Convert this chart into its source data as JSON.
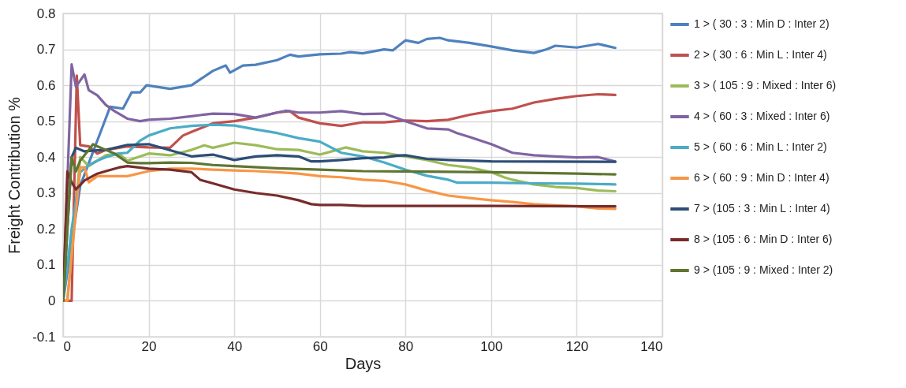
{
  "chart_data": {
    "type": "line",
    "xlabel": "Days",
    "ylabel": "Freight Contribution %",
    "xlim": [
      0,
      140
    ],
    "xticks": [
      0,
      20,
      40,
      60,
      80,
      100,
      120,
      140
    ],
    "ylim": [
      -0.1,
      0.8
    ],
    "yticks": [
      -0.1,
      0,
      0.1,
      0.2,
      0.3,
      0.4,
      0.5,
      0.6,
      0.7,
      0.8
    ],
    "grid": true,
    "legend": "right",
    "marker": "none",
    "line_style": "solid",
    "series": [
      {
        "name": "1 > ( 30 : 3 : Min D : Inter 2)",
        "color": "#4f81bd",
        "x": [
          0,
          4,
          9.4,
          11,
          14,
          16,
          18,
          19.5,
          25,
          30,
          35,
          38,
          39,
          42,
          45,
          50,
          53,
          55,
          60,
          65,
          67,
          70,
          75,
          77,
          80,
          83,
          85,
          88,
          90,
          95,
          100,
          105,
          110,
          113,
          115,
          120,
          125,
          129
        ],
        "values": [
          0,
          0.32,
          0.49,
          0.54,
          0.535,
          0.58,
          0.58,
          0.6,
          0.59,
          0.6,
          0.64,
          0.655,
          0.635,
          0.655,
          0.657,
          0.67,
          0.685,
          0.68,
          0.686,
          0.688,
          0.692,
          0.689,
          0.7,
          0.697,
          0.725,
          0.718,
          0.729,
          0.732,
          0.725,
          0.718,
          0.708,
          0.697,
          0.69,
          0.7,
          0.71,
          0.705,
          0.715,
          0.704
        ]
      },
      {
        "name": "2 > ( 30 : 6 : Min L : Inter 4)",
        "color": "#c0504d",
        "x": [
          0,
          2,
          3.2,
          4,
          6,
          8,
          10,
          15,
          20,
          25,
          28,
          30,
          35,
          40,
          45,
          50,
          53,
          55,
          60,
          65,
          70,
          75,
          80,
          85,
          90,
          95,
          100,
          105,
          110,
          115,
          120,
          125,
          129
        ],
        "values": [
          0,
          0,
          0.627,
          0.433,
          0.43,
          0.41,
          0.42,
          0.43,
          0.427,
          0.426,
          0.46,
          0.47,
          0.494,
          0.5,
          0.51,
          0.524,
          0.528,
          0.51,
          0.494,
          0.487,
          0.497,
          0.497,
          0.502,
          0.5,
          0.504,
          0.518,
          0.528,
          0.535,
          0.552,
          0.562,
          0.57,
          0.575,
          0.573
        ]
      },
      {
        "name": "3 > ( 105 : 9 : Mixed : Inter 6)",
        "color": "#9bbb59",
        "x": [
          0,
          1,
          4,
          6,
          10,
          13,
          15,
          20,
          25,
          30,
          33,
          35,
          40,
          45,
          50,
          55,
          60,
          64,
          66,
          70,
          75,
          80,
          85,
          90,
          95,
          100,
          103,
          105,
          110,
          115,
          120,
          125,
          129
        ],
        "values": [
          0,
          0,
          0.4,
          0.375,
          0.405,
          0.41,
          0.39,
          0.41,
          0.405,
          0.42,
          0.433,
          0.426,
          0.44,
          0.433,
          0.422,
          0.42,
          0.407,
          0.42,
          0.427,
          0.416,
          0.412,
          0.402,
          0.392,
          0.378,
          0.371,
          0.358,
          0.344,
          0.337,
          0.324,
          0.317,
          0.314,
          0.307,
          0.305
        ]
      },
      {
        "name": "4 > ( 60 : 3 : Mixed : Inter 6)",
        "color": "#8064a2",
        "x": [
          0,
          2,
          3,
          5,
          6,
          8,
          10,
          12,
          15,
          18,
          20,
          25,
          30,
          35,
          40,
          45,
          50,
          52,
          55,
          60,
          65,
          70,
          75,
          80,
          85,
          90,
          92,
          95,
          100,
          105,
          110,
          115,
          120,
          125,
          129
        ],
        "values": [
          0,
          0.658,
          0.596,
          0.63,
          0.586,
          0.572,
          0.545,
          0.528,
          0.507,
          0.5,
          0.504,
          0.507,
          0.514,
          0.521,
          0.52,
          0.51,
          0.524,
          0.529,
          0.524,
          0.524,
          0.528,
          0.52,
          0.521,
          0.5,
          0.48,
          0.477,
          0.467,
          0.456,
          0.436,
          0.412,
          0.405,
          0.402,
          0.399,
          0.4,
          0.388
        ]
      },
      {
        "name": "5 > ( 60 : 6 : Min L : Inter 2)",
        "color": "#4bacc6",
        "x": [
          0,
          2,
          4,
          6,
          8,
          10,
          13,
          15,
          18,
          20,
          25,
          30,
          35,
          40,
          45,
          50,
          55,
          60,
          65,
          70,
          75,
          80,
          85,
          90,
          92,
          100,
          110,
          120,
          125,
          129
        ],
        "values": [
          0,
          0.2,
          0.358,
          0.378,
          0.39,
          0.4,
          0.41,
          0.412,
          0.446,
          0.46,
          0.48,
          0.487,
          0.49,
          0.488,
          0.477,
          0.467,
          0.453,
          0.443,
          0.412,
          0.402,
          0.385,
          0.365,
          0.348,
          0.337,
          0.329,
          0.329,
          0.327,
          0.326,
          0.325,
          0.324
        ]
      },
      {
        "name": "6 > ( 60 : 9 : Min D : Inter 4)",
        "color": "#f79646",
        "x": [
          0,
          1,
          4,
          5,
          6,
          8,
          10,
          15,
          20,
          25,
          30,
          35,
          40,
          45,
          50,
          55,
          60,
          65,
          70,
          75,
          80,
          85,
          90,
          95,
          100,
          105,
          110,
          115,
          120,
          125,
          129
        ],
        "values": [
          0,
          0,
          0.371,
          0.372,
          0.33,
          0.347,
          0.347,
          0.347,
          0.361,
          0.368,
          0.368,
          0.365,
          0.363,
          0.361,
          0.358,
          0.354,
          0.347,
          0.344,
          0.337,
          0.334,
          0.324,
          0.307,
          0.293,
          0.286,
          0.28,
          0.275,
          0.269,
          0.266,
          0.263,
          0.257,
          0.256
        ]
      },
      {
        "name": "7 > (105 : 3 : Min L : Inter 4)",
        "color": "#2c4d75",
        "x": [
          0,
          2,
          3,
          5,
          8,
          10,
          15,
          20,
          25,
          30,
          35,
          40,
          45,
          50,
          55,
          58,
          60,
          65,
          70,
          75,
          78,
          80,
          85,
          90,
          100,
          129
        ],
        "values": [
          0,
          0.4,
          0.426,
          0.416,
          0.419,
          0.42,
          0.434,
          0.436,
          0.419,
          0.402,
          0.407,
          0.392,
          0.402,
          0.405,
          0.402,
          0.388,
          0.388,
          0.392,
          0.397,
          0.399,
          0.404,
          0.405,
          0.395,
          0.392,
          0.388,
          0.387
        ]
      },
      {
        "name": "8 > (105 : 6 : Min D : Inter 6)",
        "color": "#772c2a",
        "x": [
          0,
          1,
          2,
          3,
          5,
          8,
          10,
          13,
          15,
          20,
          25,
          30,
          32,
          35,
          40,
          45,
          50,
          55,
          58,
          60,
          65,
          70,
          80,
          100,
          129
        ],
        "values": [
          0,
          0.36,
          0.33,
          0.31,
          0.335,
          0.354,
          0.361,
          0.371,
          0.375,
          0.368,
          0.365,
          0.358,
          0.337,
          0.327,
          0.31,
          0.3,
          0.293,
          0.28,
          0.269,
          0.267,
          0.267,
          0.264,
          0.264,
          0.264,
          0.263
        ]
      },
      {
        "name": "9 > (105 : 9 : Mixed : Inter 2)",
        "color": "#5f7530",
        "x": [
          0,
          2,
          3,
          4,
          6,
          7,
          8,
          10,
          12,
          15,
          18,
          20,
          25,
          30,
          35,
          40,
          50,
          60,
          70,
          80,
          100,
          120,
          129
        ],
        "values": [
          0,
          0.4,
          0.36,
          0.39,
          0.42,
          0.436,
          0.43,
          0.42,
          0.41,
          0.385,
          0.383,
          0.383,
          0.385,
          0.384,
          0.378,
          0.375,
          0.369,
          0.365,
          0.361,
          0.36,
          0.358,
          0.354,
          0.352
        ]
      }
    ]
  }
}
